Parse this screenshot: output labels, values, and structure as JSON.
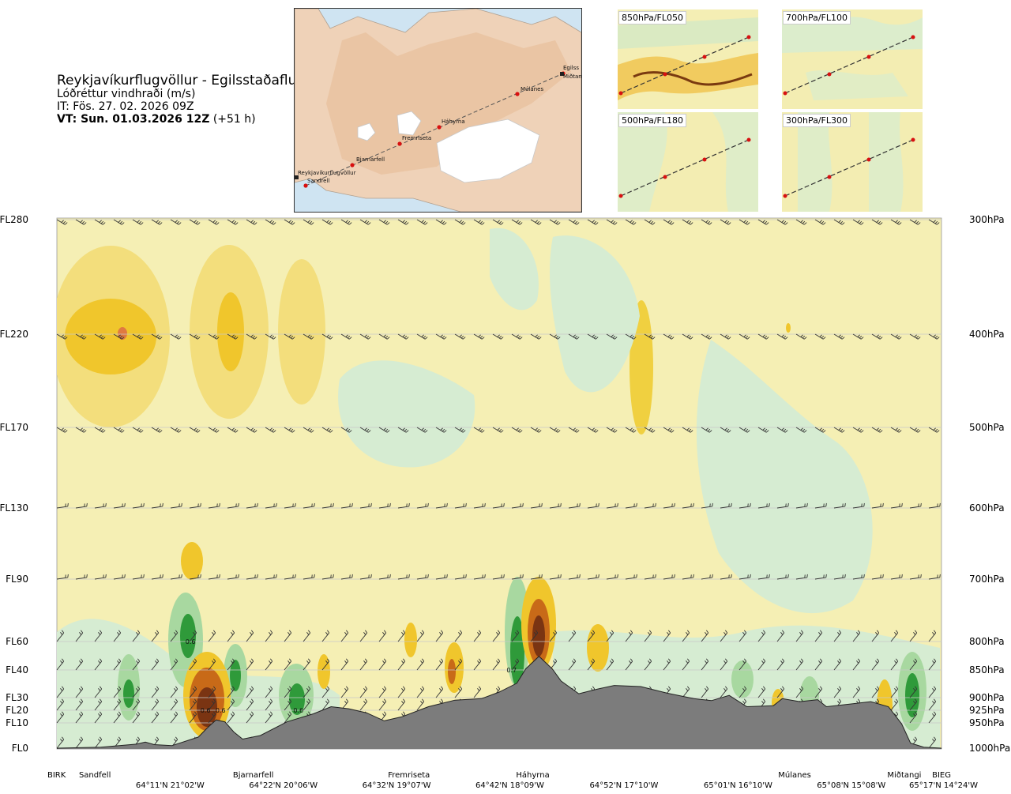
{
  "header": {
    "title": "Reykjavíkurflugvöllur - Egilsstaðaflugvöllur",
    "variable": "Lóðréttur vindhraði (m/s)",
    "issue_time": "IT: Fös. 27. 02. 2026 09Z",
    "valid_prefix": "VT: Sun. 01.03.2026 12Z",
    "valid_offset": "(+51 h)"
  },
  "map": {
    "stations": [
      "Reykjavíkurflugvöllur",
      "Sandfell",
      "Bjarnarfell",
      "Fremriseta",
      "Háhyrna",
      "Múlanes",
      "Egilss",
      "Miðtangi"
    ]
  },
  "panels": [
    {
      "label": "850hPa/FL050"
    },
    {
      "label": "700hPa/FL100"
    },
    {
      "label": "500hPa/FL180"
    },
    {
      "label": "300hPa/FL300"
    }
  ],
  "chart_data": {
    "type": "heatmap",
    "title": "Lóðréttur vindhraði (m/s)",
    "flight_levels": [
      "FL280",
      "FL220",
      "FL170",
      "FL130",
      "FL90",
      "FL60",
      "FL40",
      "FL30",
      "FL20",
      "FL10",
      "FL0"
    ],
    "pressure_levels": [
      "300hPa",
      "400hPa",
      "500hPa",
      "600hPa",
      "700hPa",
      "800hPa",
      "850hPa",
      "900hPa",
      "925hPa",
      "950hPa",
      "1000hPa"
    ],
    "pressure_hpa": [
      300,
      400,
      500,
      600,
      700,
      800,
      850,
      900,
      925,
      950,
      1000
    ],
    "route_fraction_range": [
      0,
      1
    ],
    "stations": [
      {
        "name": "BIRK",
        "route_fraction": 0.0
      },
      {
        "name": "Sandfell",
        "route_fraction": 0.043
      },
      {
        "name": "Bjarnarfell",
        "route_fraction": 0.222
      },
      {
        "name": "Fremriseta",
        "route_fraction": 0.398
      },
      {
        "name": "Háhyrna",
        "route_fraction": 0.538
      },
      {
        "name": "Múlanes",
        "route_fraction": 0.834
      },
      {
        "name": "Miðtangi",
        "route_fraction": 0.958
      },
      {
        "name": "BIEG",
        "route_fraction": 1.0
      }
    ],
    "coordinates": [
      {
        "text": "64°11'N 21°02'W",
        "route_fraction": 0.128
      },
      {
        "text": "64°22'N 20°06'W",
        "route_fraction": 0.256
      },
      {
        "text": "64°32'N 19°07'W",
        "route_fraction": 0.384
      },
      {
        "text": "64°42'N 18°09'W",
        "route_fraction": 0.512
      },
      {
        "text": "64°52'N 17°10'W",
        "route_fraction": 0.641
      },
      {
        "text": "65°01'N 16°10'W",
        "route_fraction": 0.77
      },
      {
        "text": "65°08'N 15°08'W",
        "route_fraction": 0.898
      },
      {
        "text": "65°17'N 14°24'W",
        "route_fraction": 1.0
      }
    ],
    "contour_labels": [
      {
        "text": "0.6",
        "route_fraction": 0.151,
        "pressure_hpa": 800
      },
      {
        "text": "0.6",
        "route_fraction": 0.168,
        "pressure_hpa": 925
      },
      {
        "text": "0.6",
        "route_fraction": 0.185,
        "pressure_hpa": 925
      },
      {
        "text": "0.6",
        "route_fraction": 0.273,
        "pressure_hpa": 925
      },
      {
        "text": "0.7",
        "route_fraction": 0.514,
        "pressure_hpa": 850
      }
    ],
    "terrain_surface_hpa": [
      [
        0.0,
        1000
      ],
      [
        0.05,
        998
      ],
      [
        0.09,
        992
      ],
      [
        0.1,
        988
      ],
      [
        0.11,
        993
      ],
      [
        0.13,
        995
      ],
      [
        0.16,
        978
      ],
      [
        0.17,
        960
      ],
      [
        0.18,
        944
      ],
      [
        0.19,
        948
      ],
      [
        0.2,
        968
      ],
      [
        0.21,
        982
      ],
      [
        0.23,
        975
      ],
      [
        0.26,
        948
      ],
      [
        0.29,
        932
      ],
      [
        0.31,
        918
      ],
      [
        0.33,
        922
      ],
      [
        0.35,
        930
      ],
      [
        0.37,
        946
      ],
      [
        0.39,
        938
      ],
      [
        0.42,
        918
      ],
      [
        0.45,
        905
      ],
      [
        0.48,
        902
      ],
      [
        0.5,
        890
      ],
      [
        0.52,
        874
      ],
      [
        0.53,
        848
      ],
      [
        0.545,
        826
      ],
      [
        0.56,
        848
      ],
      [
        0.57,
        870
      ],
      [
        0.59,
        893
      ],
      [
        0.61,
        885
      ],
      [
        0.63,
        878
      ],
      [
        0.66,
        880
      ],
      [
        0.69,
        892
      ],
      [
        0.72,
        902
      ],
      [
        0.74,
        906
      ],
      [
        0.76,
        896
      ],
      [
        0.78,
        918
      ],
      [
        0.81,
        916
      ],
      [
        0.82,
        902
      ],
      [
        0.84,
        908
      ],
      [
        0.86,
        904
      ],
      [
        0.87,
        918
      ],
      [
        0.9,
        912
      ],
      [
        0.92,
        908
      ],
      [
        0.94,
        918
      ],
      [
        0.955,
        952
      ],
      [
        0.965,
        990
      ],
      [
        0.98,
        998
      ],
      [
        1.0,
        1000
      ]
    ],
    "legend": "none",
    "grid": true
  }
}
